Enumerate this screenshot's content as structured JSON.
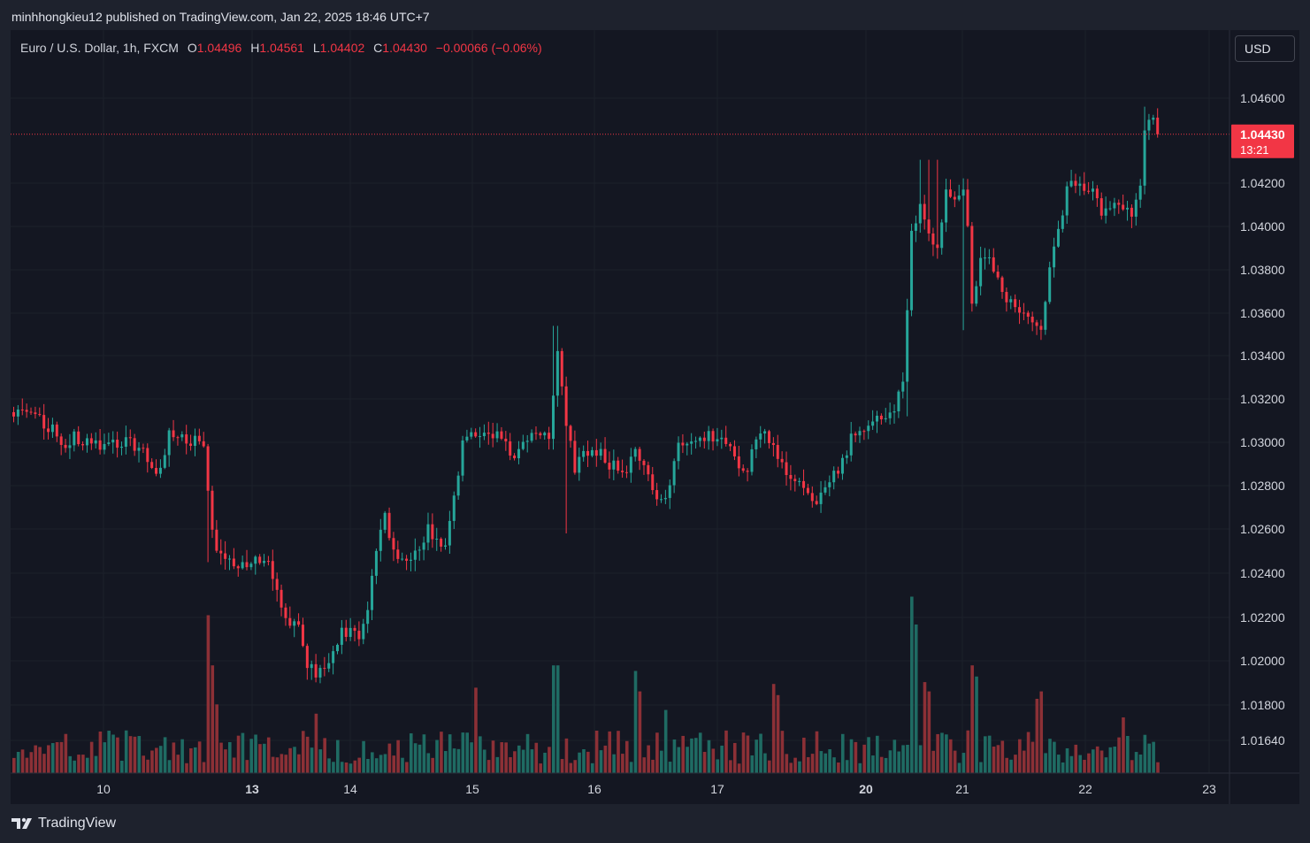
{
  "header": {
    "published_line": "minhhongkieu12 published on TradingView.com, Jan 22, 2025 18:46 UTC+7"
  },
  "legend": {
    "symbol": "Euro / U.S. Dollar, 1h, FXCM",
    "o_label": "O",
    "o_value": "1.04496",
    "h_label": "H",
    "h_value": "1.04561",
    "l_label": "L",
    "l_value": "1.04402",
    "c_label": "C",
    "c_value": "1.04430",
    "change": "−0.00066 (−0.06%)"
  },
  "currency_button": "USD",
  "brand": {
    "name": "TradingView"
  },
  "colors": {
    "up": "#26a69a",
    "down": "#f23645",
    "vol_up": "#1f6b63",
    "vol_down": "#8c3036",
    "background": "#141722",
    "grid": "#1c202b",
    "text": "#d1d4dc"
  },
  "chart_data": {
    "type": "candlestick",
    "symbol": "EURUSD",
    "timeframe": "1h",
    "price_axis_labels": [
      "1.04600",
      "1.04200",
      "1.04000",
      "1.03800",
      "1.03600",
      "1.03400",
      "1.03200",
      "1.03000",
      "1.02800",
      "1.02600",
      "1.02400",
      "1.02200",
      "1.02000",
      "1.01800",
      "1.01640"
    ],
    "price_axis_ticks": [
      1.046,
      1.042,
      1.04,
      1.038,
      1.036,
      1.034,
      1.032,
      1.03,
      1.028,
      1.026,
      1.024,
      1.022,
      1.02,
      1.018,
      1.0164
    ],
    "time_axis_labels": [
      {
        "label": "10",
        "bold": false
      },
      {
        "label": "13",
        "bold": true
      },
      {
        "label": "14",
        "bold": false
      },
      {
        "label": "15",
        "bold": false
      },
      {
        "label": "16",
        "bold": false
      },
      {
        "label": "17",
        "bold": false
      },
      {
        "label": "20",
        "bold": true
      },
      {
        "label": "21",
        "bold": false
      },
      {
        "label": "22",
        "bold": false
      },
      {
        "label": "23",
        "bold": false
      }
    ],
    "current_price": {
      "label": "1.04430",
      "countdown": "13:21",
      "value": 1.0443
    },
    "price_path_anchors": [
      [
        0,
        1.0314
      ],
      [
        6,
        1.031
      ],
      [
        10,
        1.0305
      ],
      [
        12,
        1.0298
      ],
      [
        14,
        1.0302
      ],
      [
        18,
        1.0298
      ],
      [
        26,
        1.03
      ],
      [
        28,
        1.0298
      ],
      [
        31,
        1.0293
      ],
      [
        33,
        1.0283
      ],
      [
        36,
        1.0303
      ],
      [
        40,
        1.0302
      ],
      [
        43,
        1.03
      ],
      [
        44,
        1.03
      ],
      [
        46,
        1.0258
      ],
      [
        48,
        1.0248
      ],
      [
        52,
        1.0245
      ],
      [
        56,
        1.0246
      ],
      [
        58,
        1.0245
      ],
      [
        60,
        1.024
      ],
      [
        62,
        1.0222
      ],
      [
        64,
        1.0215
      ],
      [
        66,
        1.0218
      ],
      [
        68,
        1.0198
      ],
      [
        70,
        1.0195
      ],
      [
        74,
        1.0202
      ],
      [
        76,
        1.0215
      ],
      [
        80,
        1.021
      ],
      [
        82,
        1.0222
      ],
      [
        84,
        1.025
      ],
      [
        86,
        1.0265
      ],
      [
        88,
        1.025
      ],
      [
        92,
        1.0245
      ],
      [
        96,
        1.026
      ],
      [
        100,
        1.025
      ],
      [
        102,
        1.0275
      ],
      [
        104,
        1.03
      ],
      [
        106,
        1.0303
      ],
      [
        108,
        1.0305
      ],
      [
        112,
        1.0303
      ],
      [
        114,
        1.0298
      ],
      [
        116,
        1.0295
      ],
      [
        118,
        1.03
      ],
      [
        120,
        1.0305
      ],
      [
        122,
        1.0305
      ],
      [
        124,
        1.0302
      ],
      [
        126,
        1.0343
      ],
      [
        127,
        1.0327
      ],
      [
        128,
        1.031
      ],
      [
        130,
        1.0288
      ],
      [
        132,
        1.0295
      ],
      [
        136,
        1.0297
      ],
      [
        138,
        1.029
      ],
      [
        140,
        1.0289
      ],
      [
        142,
        1.0288
      ],
      [
        144,
        1.0295
      ],
      [
        146,
        1.0292
      ],
      [
        148,
        1.028
      ],
      [
        150,
        1.0272
      ],
      [
        152,
        1.028
      ],
      [
        154,
        1.03
      ],
      [
        156,
        1.0299
      ],
      [
        158,
        1.03
      ],
      [
        162,
        1.0303
      ],
      [
        164,
        1.0303
      ],
      [
        166,
        1.0296
      ],
      [
        168,
        1.029
      ],
      [
        170,
        1.0288
      ],
      [
        172,
        1.03
      ],
      [
        174,
        1.0303
      ],
      [
        176,
        1.03
      ],
      [
        178,
        1.029
      ],
      [
        180,
        1.0282
      ],
      [
        182,
        1.0283
      ],
      [
        184,
        1.0278
      ],
      [
        186,
        1.0272
      ],
      [
        188,
        1.028
      ],
      [
        190,
        1.0285
      ],
      [
        192,
        1.029
      ],
      [
        194,
        1.0303
      ],
      [
        196,
        1.0306
      ],
      [
        198,
        1.0305
      ],
      [
        200,
        1.0311
      ],
      [
        202,
        1.0312
      ],
      [
        204,
        1.0316
      ],
      [
        206,
        1.0325
      ],
      [
        208,
        1.0396
      ],
      [
        210,
        1.041
      ],
      [
        212,
        1.0395
      ],
      [
        214,
        1.0393
      ],
      [
        216,
        1.0415
      ],
      [
        218,
        1.0415
      ],
      [
        220,
        1.0415
      ],
      [
        221,
        1.04
      ],
      [
        222,
        1.0363
      ],
      [
        224,
        1.0383
      ],
      [
        226,
        1.0387
      ],
      [
        228,
        1.0375
      ],
      [
        230,
        1.0365
      ],
      [
        232,
        1.0362
      ],
      [
        234,
        1.0358
      ],
      [
        236,
        1.0356
      ],
      [
        238,
        1.0354
      ],
      [
        240,
        1.0382
      ],
      [
        242,
        1.0398
      ],
      [
        244,
        1.0418
      ],
      [
        246,
        1.042
      ],
      [
        248,
        1.0415
      ],
      [
        250,
        1.042
      ],
      [
        252,
        1.0405
      ],
      [
        254,
        1.041
      ],
      [
        256,
        1.0408
      ],
      [
        258,
        1.041
      ],
      [
        259,
        1.0403
      ],
      [
        261,
        1.0418
      ],
      [
        262,
        1.0446
      ],
      [
        264,
        1.0449
      ],
      [
        265,
        1.0443
      ]
    ],
    "volume_spikes": [
      [
        45,
        0.85
      ],
      [
        46,
        0.58
      ],
      [
        47,
        0.37
      ],
      [
        70,
        0.32
      ],
      [
        107,
        0.46
      ],
      [
        125,
        0.58
      ],
      [
        126,
        0.58
      ],
      [
        144,
        0.55
      ],
      [
        145,
        0.44
      ],
      [
        151,
        0.34
      ],
      [
        176,
        0.48
      ],
      [
        177,
        0.42
      ],
      [
        208,
        0.95
      ],
      [
        209,
        0.8
      ],
      [
        211,
        0.49
      ],
      [
        212,
        0.44
      ],
      [
        222,
        0.58
      ],
      [
        223,
        0.52
      ],
      [
        237,
        0.4
      ],
      [
        238,
        0.44
      ],
      [
        257,
        0.3
      ],
      [
        258,
        0.2
      ]
    ]
  }
}
